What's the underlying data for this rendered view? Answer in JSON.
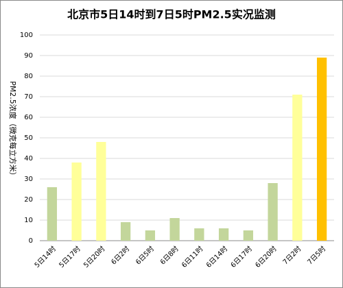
{
  "chart_data": {
    "type": "bar",
    "title": "北京市5日14时到7日5时PM2.5实况监测",
    "y_label": "PM2.5浓度（微克每立方米）",
    "categories": [
      "5日14时",
      "5日17时",
      "5日20时",
      "6日2时",
      "6日5时",
      "6日8时",
      "6日11时",
      "6日14时",
      "6日17时",
      "6日20时",
      "7日2时",
      "7日5时"
    ],
    "values": [
      26,
      38,
      48,
      9,
      5,
      11,
      6,
      6,
      5,
      28,
      71,
      89
    ],
    "colors": [
      "#c3d69b",
      "#ffff99",
      "#ffff99",
      "#c3d69b",
      "#c3d69b",
      "#c3d69b",
      "#c3d69b",
      "#c3d69b",
      "#c3d69b",
      "#c3d69b",
      "#ffff99",
      "#ffc000"
    ],
    "ylim": [
      0,
      100
    ],
    "yticks": [
      0,
      10,
      20,
      30,
      40,
      50,
      60,
      70,
      80,
      90,
      100
    ],
    "grid": true
  }
}
